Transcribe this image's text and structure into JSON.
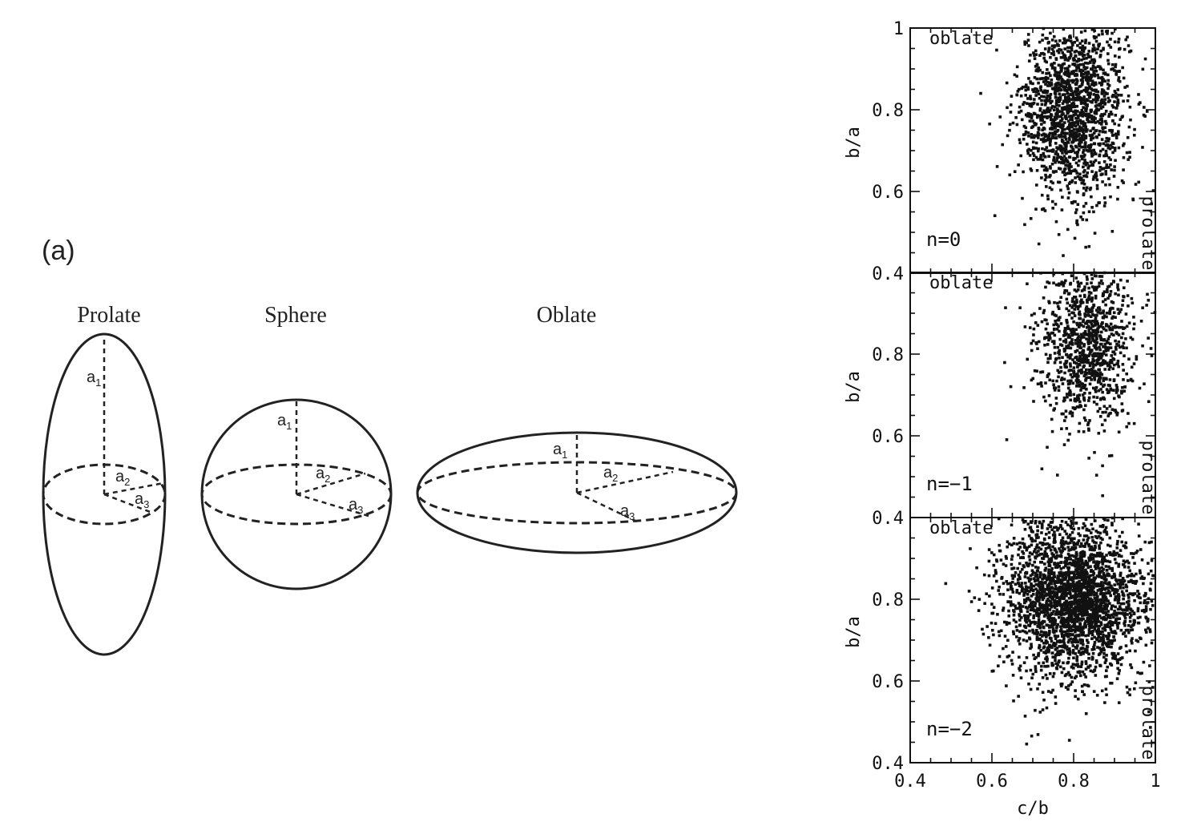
{
  "figure": {
    "panel_label": "(a)",
    "shapes": [
      {
        "name": "Prolate",
        "axes": [
          "a1",
          "a2",
          "a3"
        ]
      },
      {
        "name": "Sphere",
        "axes": [
          "a1",
          "a2",
          "a3"
        ]
      },
      {
        "name": "Oblate",
        "axes": [
          "a1",
          "a2",
          "a3"
        ]
      }
    ],
    "axis_labels": {
      "a1": {
        "main": "a",
        "sub": "1"
      },
      "a2": {
        "main": "a",
        "sub": "2"
      },
      "a3": {
        "main": "a",
        "sub": "3"
      }
    }
  },
  "chart_data": [
    {
      "type": "scatter",
      "panel": "n=0",
      "ylabel": "b/a",
      "xlabel": "",
      "xlim": [
        0.4,
        1
      ],
      "ylim": [
        0.4,
        1
      ],
      "yticks": [
        "1",
        "0.8",
        "0.6",
        "0.4"
      ],
      "annotations": {
        "oblate": "oblate",
        "prolate": "prolate"
      },
      "cloud": {
        "center": [
          0.8,
          0.8
        ],
        "spread": [
          0.065,
          0.11
        ],
        "points": 1600
      },
      "grid": false
    },
    {
      "type": "scatter",
      "panel": "n=−1",
      "ylabel": "b/a",
      "xlabel": "",
      "xlim": [
        0.4,
        1
      ],
      "ylim": [
        0.4,
        1
      ],
      "yticks": [
        "0.8",
        "0.6",
        "0.4"
      ],
      "annotations": {
        "oblate": "oblate",
        "prolate": "prolate"
      },
      "cloud": {
        "center": [
          0.83,
          0.82
        ],
        "spread": [
          0.06,
          0.1
        ],
        "points": 1000
      },
      "grid": false
    },
    {
      "type": "scatter",
      "panel": "n=−2",
      "ylabel": "b/a",
      "xlabel": "c/b",
      "xlim": [
        0.4,
        1
      ],
      "ylim": [
        0.4,
        1
      ],
      "yticks": [
        "0.8",
        "0.6",
        "0.4"
      ],
      "xticks": [
        "0.4",
        "0.6",
        "0.8",
        "1"
      ],
      "annotations": {
        "oblate": "oblate",
        "prolate": "prolate"
      },
      "cloud": {
        "center": [
          0.8,
          0.8
        ],
        "spread": [
          0.085,
          0.1
        ],
        "points": 2600
      },
      "grid": false
    }
  ]
}
